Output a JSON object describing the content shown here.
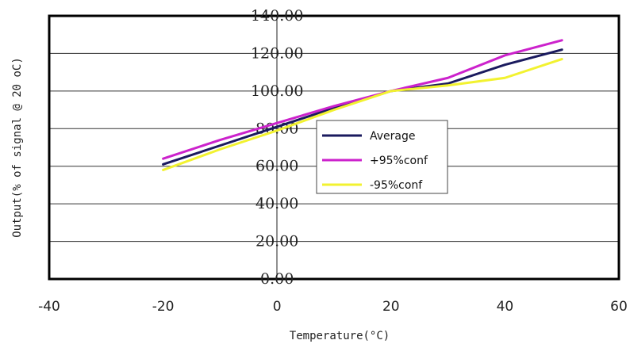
{
  "chart_data": {
    "type": "line",
    "xlabel": "Temperature(°C)",
    "ylabel": "Output(% of signal @ 20 oC)",
    "xlim": [
      -40,
      60
    ],
    "ylim": [
      0,
      140
    ],
    "x_ticks": [
      "-40",
      "-20",
      "0",
      "20",
      "40",
      "60"
    ],
    "y_ticks": [
      "0.00",
      "20.00",
      "40.00",
      "60.00",
      "80.00",
      "100.00",
      "120.00",
      "140.00"
    ],
    "grid": "horizontal",
    "legend_position": "center",
    "series": [
      {
        "name": "Average",
        "color": "#1a1a5e",
        "x": [
          -20,
          -10,
          0,
          10,
          20,
          30,
          40,
          50
        ],
        "y": [
          61,
          71,
          81,
          91,
          100,
          104,
          114,
          122
        ]
      },
      {
        "name": "+95%conf",
        "color": "#cc22cc",
        "x": [
          -20,
          -10,
          0,
          10,
          20,
          30,
          40,
          50
        ],
        "y": [
          64,
          74,
          83,
          92,
          100,
          107,
          119,
          127
        ]
      },
      {
        "name": "-95%conf",
        "color": "#f2f230",
        "x": [
          -20,
          -10,
          0,
          10,
          20,
          30,
          40,
          50
        ],
        "y": [
          58,
          69,
          79,
          90,
          100,
          103,
          107,
          117
        ]
      }
    ]
  }
}
